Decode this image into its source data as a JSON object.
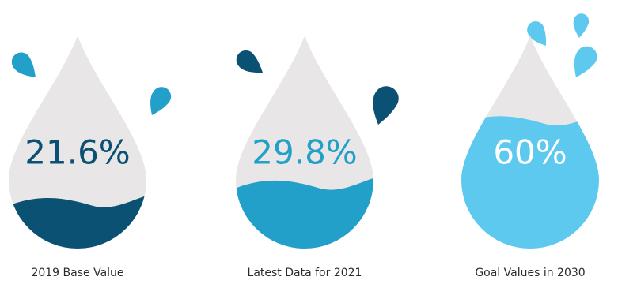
{
  "chart_data": {
    "type": "drop",
    "categories": [
      "2019 Base Value",
      "Latest Data for 2021",
      "Goal Values in 2030"
    ],
    "values": [
      21.6,
      29.8,
      60
    ],
    "value_labels": [
      "21.6%",
      "29.8%",
      "60%"
    ],
    "colors": [
      "#0b5173",
      "#23a0c9",
      "#5ec9ef"
    ],
    "label_colors": [
      "#0b5173",
      "#23a0c9",
      "#ffffff"
    ]
  }
}
